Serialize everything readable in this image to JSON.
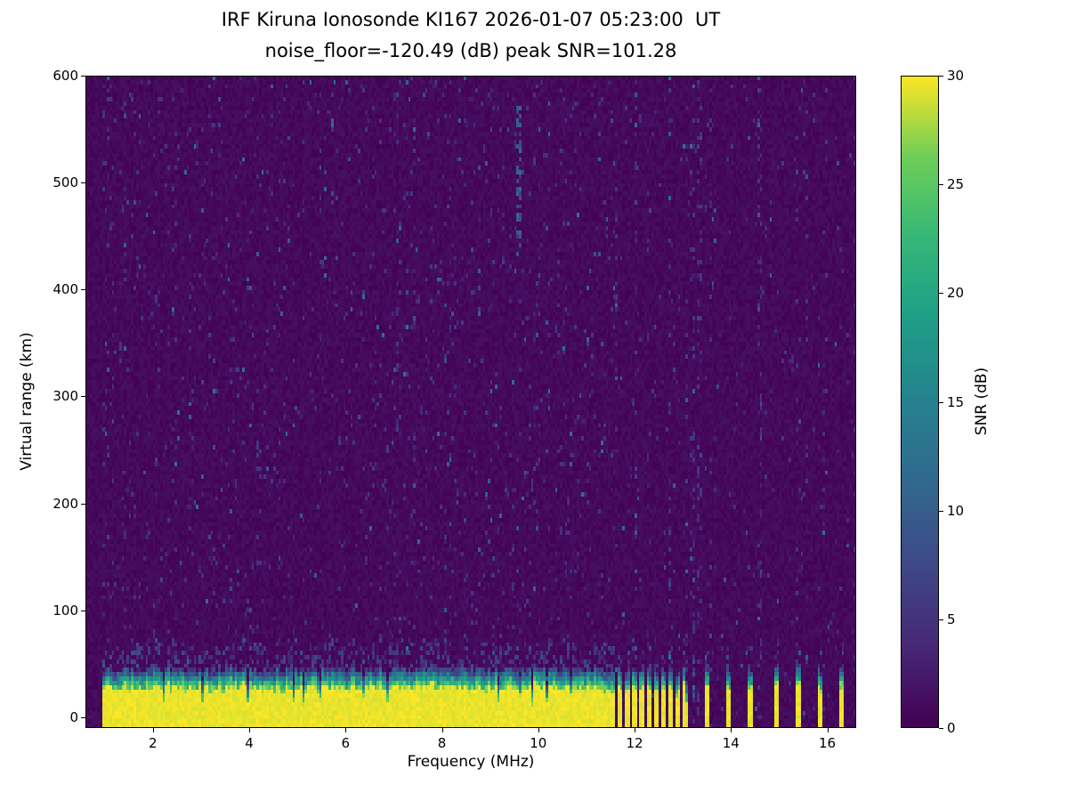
{
  "chart_data": {
    "type": "heatmap",
    "title": "IRF Kiruna Ionosonde KI167 2026-01-07 05:23:00  UT",
    "subtitle": "noise_floor=-120.49 (dB) peak SNR=101.28",
    "xlabel": "Frequency (MHz)",
    "ylabel": "Virtual range (km)",
    "xlim": [
      0.6,
      16.6
    ],
    "ylim": [
      -10,
      600
    ],
    "xticks": [
      2,
      4,
      6,
      8,
      10,
      12,
      14,
      16
    ],
    "yticks": [
      0,
      100,
      200,
      300,
      400,
      500,
      600
    ],
    "noise_floor_db": -120.49,
    "peak_snr_db": 101.28,
    "colorbar": {
      "label": "SNR (dB)",
      "ticks": [
        0,
        5,
        10,
        15,
        20,
        25,
        30
      ],
      "range": [
        0,
        30
      ],
      "colormap": "viridis",
      "stops": [
        "#440154",
        "#482878",
        "#3e4989",
        "#31688e",
        "#26828e",
        "#1f9e89",
        "#35b779",
        "#6ece58",
        "#fde725"
      ]
    },
    "features": {
      "ground_echo_band": {
        "start_mhz": 0.95,
        "continuous_until_mhz": 11.6,
        "top_km": 26,
        "transition_km": 20
      },
      "stripe_frequencies_mhz": [
        11.68,
        11.83,
        11.98,
        12.13,
        12.28,
        12.45,
        12.6,
        12.75,
        12.9,
        13.05,
        13.5,
        13.95,
        14.4,
        14.95,
        15.4,
        15.85,
        16.3
      ],
      "noise_streak": {
        "mhz": 9.62,
        "from_km": 430,
        "to_km": 575
      }
    },
    "grid": {
      "cols": 320,
      "rows": 152
    },
    "noise_seed": 167
  }
}
